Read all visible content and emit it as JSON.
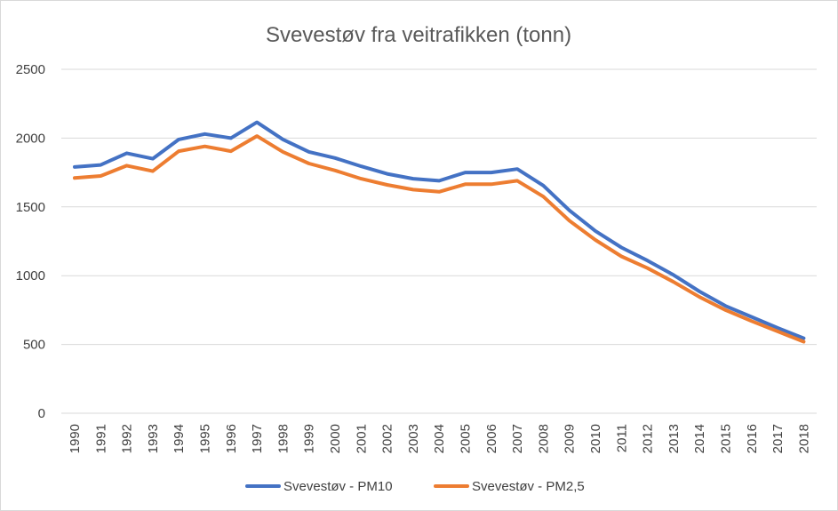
{
  "chart_data": {
    "type": "line",
    "title": "Svevestøv fra veitrafikken (tonn)",
    "xlabel": "",
    "ylabel": "",
    "ylim": [
      0,
      2500
    ],
    "yticks": [
      "0",
      "500",
      "1000",
      "1500",
      "2000",
      "2500"
    ],
    "grid": true,
    "legend_position": "bottom",
    "x": [
      "1990",
      "1991",
      "1992",
      "1993",
      "1994",
      "1995",
      "1996",
      "1997",
      "1998",
      "1999",
      "2000",
      "2001",
      "2002",
      "2003",
      "2004",
      "2005",
      "2006",
      "2007",
      "2008",
      "2009",
      "2010",
      "2011",
      "2012",
      "2013",
      "2014",
      "2015",
      "2016",
      "2017",
      "2018"
    ],
    "series": [
      {
        "name": "Svevestøv - PM10",
        "color": "#4472c4",
        "values": [
          1790,
          1805,
          1890,
          1850,
          1990,
          2030,
          2000,
          2115,
          1990,
          1900,
          1855,
          1795,
          1740,
          1705,
          1690,
          1750,
          1750,
          1775,
          1655,
          1475,
          1325,
          1205,
          1110,
          1005,
          885,
          780,
          700,
          620,
          545
        ]
      },
      {
        "name": "Svevestøv - PM2,5",
        "color": "#ed7d31",
        "values": [
          1710,
          1725,
          1800,
          1760,
          1905,
          1940,
          1905,
          2015,
          1900,
          1815,
          1765,
          1705,
          1660,
          1625,
          1610,
          1665,
          1665,
          1690,
          1575,
          1400,
          1260,
          1140,
          1055,
          955,
          845,
          750,
          670,
          595,
          520
        ]
      }
    ]
  }
}
